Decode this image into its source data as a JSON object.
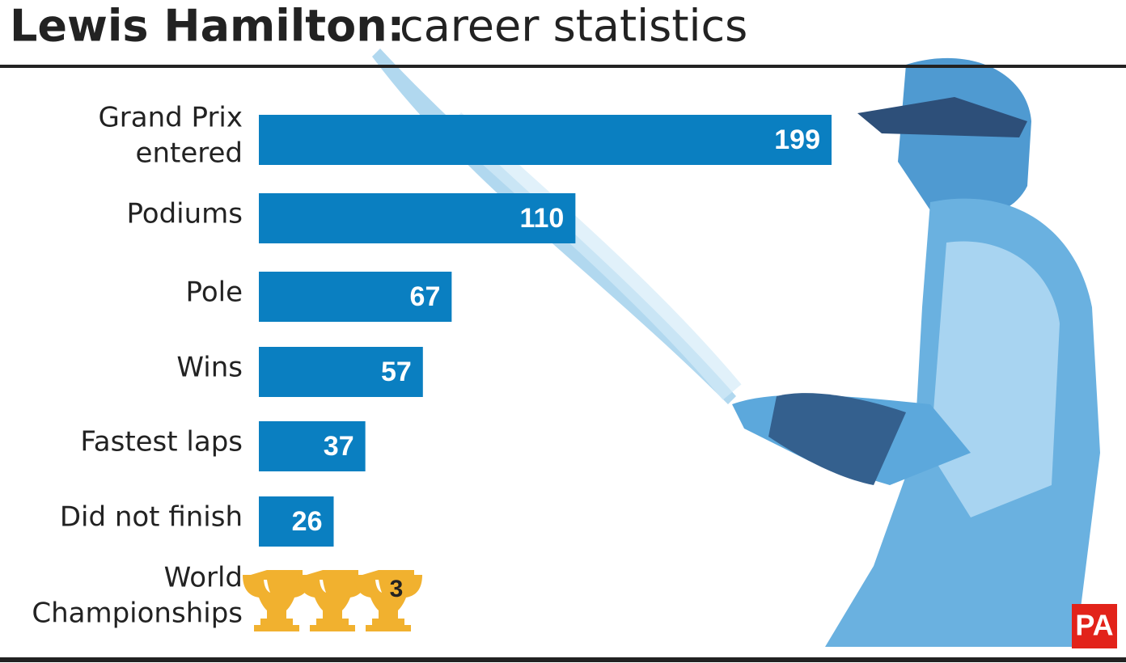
{
  "chart_data": {
    "type": "bar",
    "orientation": "horizontal",
    "title": "Lewis Hamilton:",
    "subtitle": "career statistics",
    "categories": [
      [
        "Grand Prix",
        "entered"
      ],
      [
        "Podiums"
      ],
      [
        "Pole"
      ],
      [
        "Wins"
      ],
      [
        "Fastest laps"
      ],
      [
        "Did not finish"
      ]
    ],
    "values": [
      199,
      110,
      67,
      57,
      37,
      26
    ],
    "color": "#0a7fc1",
    "championships": {
      "label": [
        "World",
        "Championships"
      ],
      "value": 3,
      "color": "#f1b12f"
    },
    "logo": "PA"
  }
}
